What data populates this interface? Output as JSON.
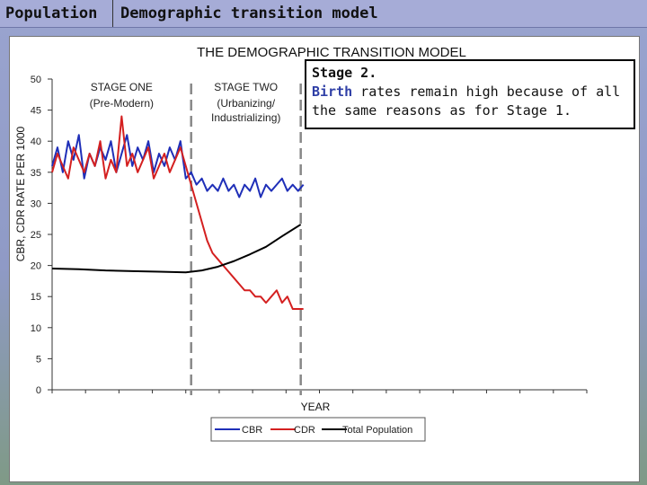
{
  "header": {
    "tab1": "Population",
    "tab2": "Demographic transition model"
  },
  "callout": {
    "heading": "Stage 2.",
    "keyword": "Birth",
    "text": " rates remain high because of all the same reasons as for Stage 1."
  },
  "colors": {
    "cbr": "#1f2fb8",
    "cdr": "#d42020",
    "population": "#000000",
    "divider": "#888888"
  },
  "chart_data": {
    "type": "line",
    "title": "THE DEMOGRAPHIC TRANSITION MODEL",
    "xlabel": "YEAR",
    "ylabel": "CBR, CDR RATE PER 1000",
    "ylim": [
      0,
      50
    ],
    "yticks": [
      0,
      5,
      10,
      15,
      20,
      25,
      30,
      35,
      40,
      45,
      50
    ],
    "xlim": [
      0,
      100
    ],
    "stage_dividers": [
      26,
      46.5
    ],
    "stages": [
      {
        "label": "STAGE ONE",
        "sublabel": "(Pre-Modern)"
      },
      {
        "label": "STAGE TWO",
        "sublabel": "(Urbanizing/ Industrializing)"
      }
    ],
    "legend": {
      "position": "bottom",
      "entries": [
        "CBR",
        "CDR",
        "Total Population"
      ]
    },
    "series": [
      {
        "name": "CBR",
        "x": [
          0,
          1,
          2,
          3,
          4,
          5,
          6,
          7,
          8,
          9,
          10,
          11,
          12,
          13,
          14,
          15,
          16,
          17,
          18,
          19,
          20,
          21,
          22,
          23,
          24,
          25,
          26,
          27,
          28,
          29,
          30,
          31,
          32,
          33,
          34,
          35,
          36,
          37,
          38,
          39,
          40,
          41,
          42,
          43,
          44,
          45,
          46,
          47
        ],
        "values": [
          36,
          39,
          35,
          40,
          37,
          41,
          34,
          38,
          36,
          39,
          37,
          40,
          35,
          38,
          41,
          36,
          39,
          37,
          40,
          35,
          38,
          36,
          39,
          37,
          40,
          34,
          35,
          33,
          34,
          32,
          33,
          32,
          34,
          32,
          33,
          31,
          33,
          32,
          34,
          31,
          33,
          32,
          33,
          34,
          32,
          33,
          32,
          33
        ]
      },
      {
        "name": "CDR",
        "x": [
          0,
          1,
          2,
          3,
          4,
          5,
          6,
          7,
          8,
          9,
          10,
          11,
          12,
          13,
          14,
          15,
          16,
          17,
          18,
          19,
          20,
          21,
          22,
          23,
          24,
          25,
          26,
          27,
          28,
          29,
          30,
          31,
          32,
          33,
          34,
          35,
          36,
          37,
          38,
          39,
          40,
          41,
          42,
          43,
          44,
          45,
          46,
          47
        ],
        "values": [
          35,
          38,
          36,
          34,
          39,
          37,
          35,
          38,
          36,
          40,
          34,
          37,
          35,
          44,
          36,
          38,
          35,
          37,
          39,
          34,
          36,
          38,
          35,
          37,
          39,
          36,
          33,
          30,
          27,
          24,
          22,
          21,
          20,
          19,
          18,
          17,
          16,
          16,
          15,
          15,
          14,
          15,
          16,
          14,
          15,
          13,
          13,
          13
        ]
      },
      {
        "name": "Total Population",
        "x": [
          0,
          5,
          10,
          15,
          20,
          25,
          28,
          31,
          34,
          37,
          40,
          43,
          46.5
        ],
        "values": [
          19.5,
          19.4,
          19.2,
          19.1,
          19.0,
          18.9,
          19.2,
          19.8,
          20.7,
          21.8,
          23.0,
          24.7,
          26.6
        ]
      }
    ]
  }
}
